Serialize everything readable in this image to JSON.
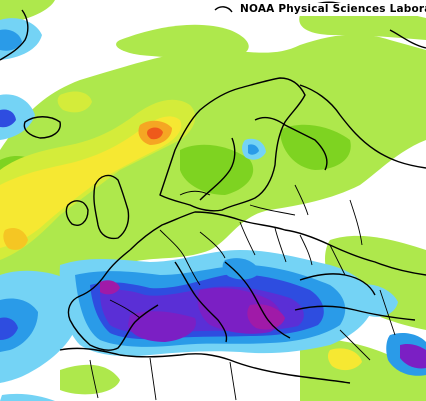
{
  "credit": "NOAA Physical Sciences Laboratory",
  "colors": {
    "background": "#ffffff",
    "light_green": "#aee84c",
    "green": "#7ed321",
    "yellow_green": "#d4ec3a",
    "yellow": "#f6e832",
    "orange": "#f5a623",
    "red_orange": "#ee5a1b",
    "light_blue": "#74d3f5",
    "blue": "#2a9be8",
    "deep_blue": "#2e4de0",
    "indigo": "#5a2fd6",
    "violet": "#7b1fc4",
    "magenta": "#a01aa8",
    "coastline": "#000000"
  }
}
